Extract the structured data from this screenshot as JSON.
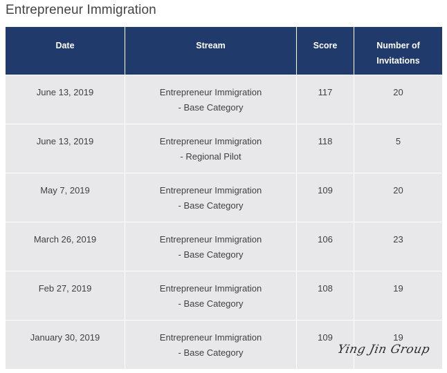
{
  "page": {
    "title": "Entrepreneur Immigration"
  },
  "table": {
    "headers": {
      "date": "Date",
      "stream": "Stream",
      "score": "Score",
      "invitations_line1": "Number of",
      "invitations_line2": "Invitations"
    },
    "rows": [
      {
        "date": "June 13, 2019",
        "stream_line1": "Entrepreneur Immigration",
        "stream_line2": "- Base Category",
        "score": "117",
        "invitations": "20"
      },
      {
        "date": "June 13, 2019",
        "stream_line1": "Entrepreneur Immigration",
        "stream_line2": "- Regional Pilot",
        "score": "118",
        "invitations": "5"
      },
      {
        "date": "May 7, 2019",
        "stream_line1": "Entrepreneur Immigration",
        "stream_line2": "- Base Category",
        "score": "109",
        "invitations": "20"
      },
      {
        "date": "March 26, 2019",
        "stream_line1": "Entrepreneur Immigration",
        "stream_line2": "- Base Category",
        "score": "106",
        "invitations": "23"
      },
      {
        "date": "Feb 27, 2019",
        "stream_line1": "Entrepreneur Immigration",
        "stream_line2": "- Base Category",
        "score": "108",
        "invitations": "19"
      },
      {
        "date": "January 30, 2019",
        "stream_line1": "Entrepreneur Immigration",
        "stream_line2": "- Base Category",
        "score": "109",
        "invitations": "19"
      }
    ]
  },
  "watermark": {
    "text": "Ying Jin Group"
  },
  "colors": {
    "header_bg": "#1f3a6b",
    "row_bg": "#e8e8ea"
  }
}
